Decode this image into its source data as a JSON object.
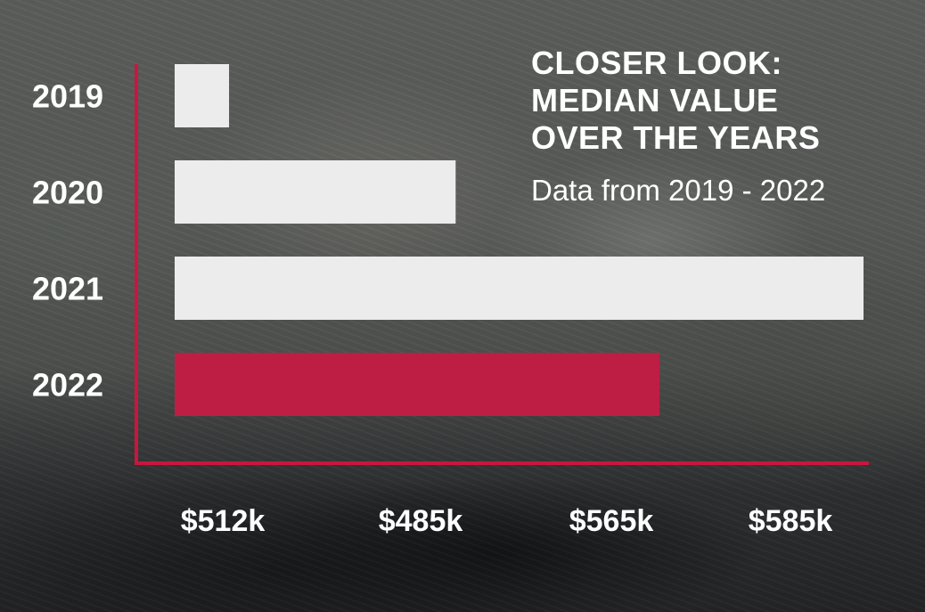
{
  "chart_data": {
    "type": "bar",
    "orientation": "horizontal",
    "title_lines": [
      "CLOSER LOOK:",
      "MEDIAN VALUE",
      "OVER THE YEARS"
    ],
    "subtitle": "Data from 2019 - 2022",
    "categories": [
      "2019",
      "2020",
      "2021",
      "2022"
    ],
    "values": [
      490,
      540,
      630,
      585
    ],
    "xlim": [
      478,
      630
    ],
    "x_tick_labels": [
      "$512k",
      "$485k",
      "$565k",
      "$585k"
    ],
    "grid": false,
    "legend": "none"
  },
  "colors": {
    "bar_default": "#ececed",
    "bar_highlight": "#be1e44",
    "axis": "#c8173f",
    "text": "#ffffff",
    "highlight_category": "2022"
  }
}
